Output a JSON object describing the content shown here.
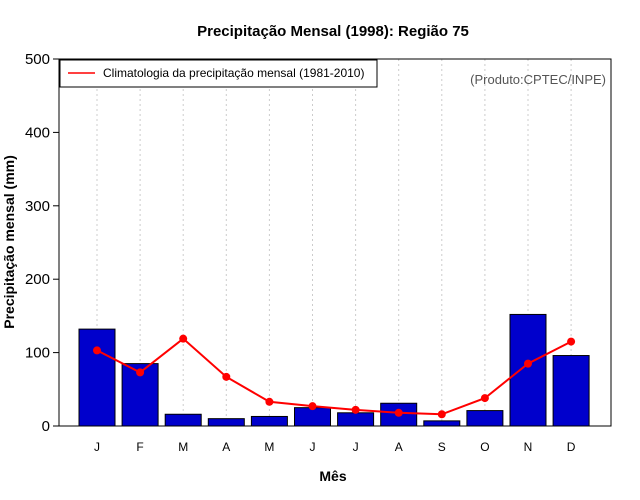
{
  "chart_data": {
    "type": "bar",
    "title": "Precipitação Mensal (1998): Região 75",
    "xlabel": "Mês",
    "ylabel": "Precipitação mensal (mm)",
    "ylim": [
      0,
      500
    ],
    "yticks": [
      0,
      100,
      200,
      300,
      400,
      500
    ],
    "grid": "vertical dotted",
    "categories": [
      "J",
      "F",
      "M",
      "A",
      "M",
      "J",
      "J",
      "A",
      "S",
      "O",
      "N",
      "D"
    ],
    "series": [
      {
        "name": "Precipitação mensal 1998",
        "type": "bar",
        "color": "#0000cc",
        "values": [
          132,
          85,
          16,
          10,
          13,
          25,
          18,
          31,
          7,
          21,
          152,
          96
        ]
      },
      {
        "name": "Climatologia da precipitação mensal (1981-2010)",
        "type": "line",
        "color": "#ff0000",
        "values": [
          103,
          73,
          119,
          67,
          33,
          27,
          22,
          18,
          16,
          38,
          85,
          115
        ]
      }
    ],
    "legend": {
      "position": "top-left",
      "entries": [
        "Climatologia da precipitação mensal (1981-2010)"
      ]
    },
    "annotation": "(Produto:CPTEC/INPE)"
  }
}
